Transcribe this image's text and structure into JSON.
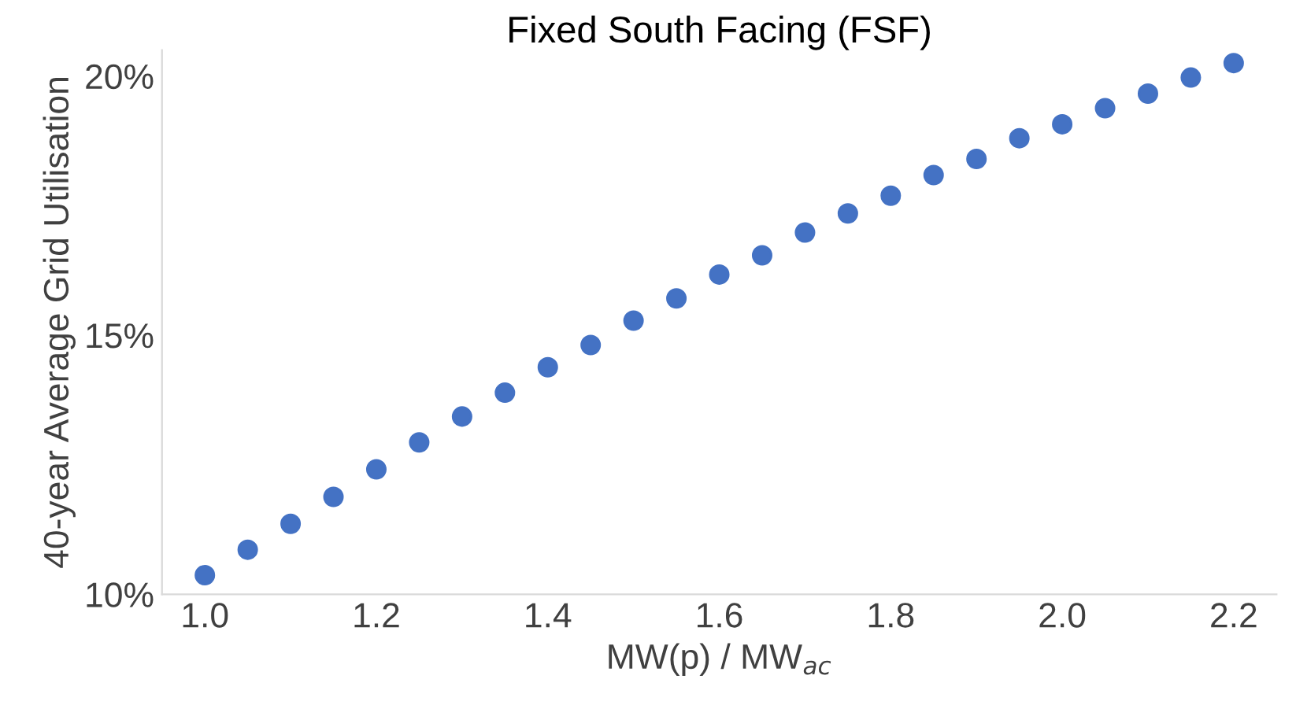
{
  "chart_data": {
    "type": "scatter",
    "title": "Fixed South Facing (FSF)",
    "xlabel": "MW(p) / MW$_{ac}$",
    "ylabel": "40-year Average Grid Utilisation",
    "x": [
      1.0,
      1.05,
      1.1,
      1.15,
      1.2,
      1.25,
      1.3,
      1.35,
      1.4,
      1.45,
      1.5,
      1.55,
      1.6,
      1.65,
      1.7,
      1.75,
      1.8,
      1.85,
      1.9,
      1.95,
      2.0,
      2.05,
      2.1,
      2.15,
      2.2
    ],
    "series": [
      {
        "color": "#4472c4",
        "values": [
          10.37,
          10.86,
          11.36,
          11.88,
          12.41,
          12.93,
          13.43,
          13.89,
          14.38,
          14.81,
          15.28,
          15.71,
          16.17,
          16.54,
          16.98,
          17.35,
          17.69,
          18.09,
          18.4,
          18.8,
          19.07,
          19.38,
          19.66,
          19.97,
          20.25
        ]
      }
    ],
    "xlim": [
      0.95,
      2.25
    ],
    "xticks": [
      {
        "value": 1.0,
        "label": "1.0"
      },
      1.2,
      1.4,
      1.6,
      1.8,
      {
        "value": 2.0,
        "label": "2.0"
      },
      2.2
    ],
    "ylim": [
      10,
      20.5
    ],
    "yticks": [
      {
        "value": 10,
        "label": "10%"
      },
      {
        "value": 15,
        "label": "15%"
      },
      {
        "value": 20,
        "label": "20%"
      }
    ],
    "marker": "circle",
    "grid": false,
    "legend": false
  }
}
